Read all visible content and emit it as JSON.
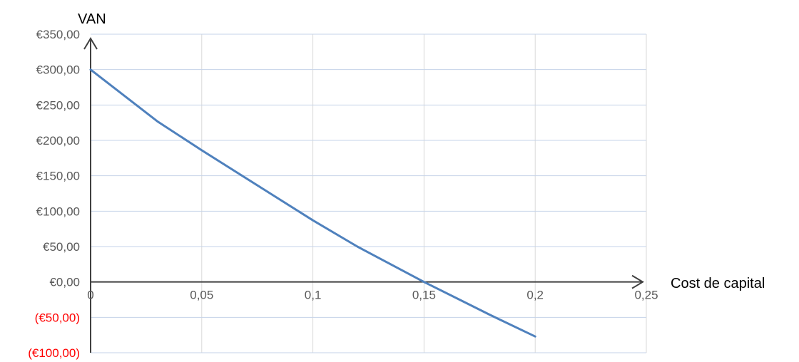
{
  "chart_data": {
    "type": "line",
    "title": "",
    "xlabel": "Cost de capital",
    "ylabel": "VAN",
    "x_ticks": [
      "0",
      "0,05",
      "0,1",
      "0,15",
      "0,2",
      "0,25"
    ],
    "y_ticks": [
      "(€100,00)",
      "(€50,00)",
      "€0,00",
      "€50,00",
      "€100,00",
      "€150,00",
      "€200,00",
      "€250,00",
      "€300,00",
      "€350,00"
    ],
    "xlim": [
      0,
      0.25
    ],
    "ylim": [
      -100,
      350
    ],
    "grid": true,
    "series": [
      {
        "x": [
          0,
          0.03,
          0.05,
          0.1,
          0.12,
          0.15,
          0.18,
          0.2
        ],
        "y": [
          300,
          227,
          186,
          87,
          50,
          0,
          -47,
          -77
        ]
      }
    ],
    "colors": {
      "line": "#4f81bd",
      "gridline": "#d9d9d9",
      "axis": "#404040",
      "negative_label": "#ff0000",
      "tick_label": "#595959"
    }
  }
}
